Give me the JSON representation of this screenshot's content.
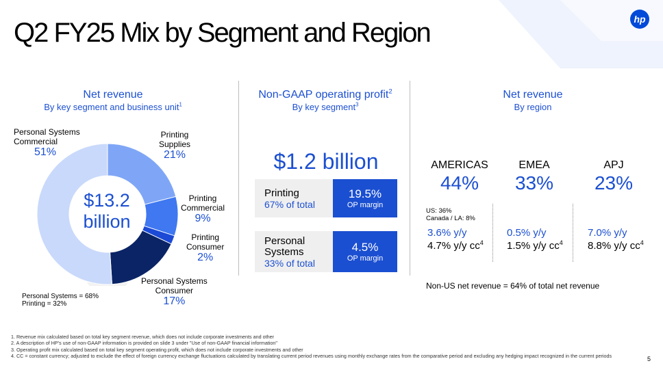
{
  "title": "Q2 FY25 Mix by Segment and Region",
  "logo_text": "hp",
  "page_number": "5",
  "colors": {
    "accent": "#1b4fd1",
    "navy": "#0b2466",
    "light_blue": "#c9d9fb",
    "mid_blue": "#7fa6f6",
    "blue": "#3f78f0",
    "deep_blue": "#1c4ad6"
  },
  "left": {
    "heading": "Net revenue",
    "subheading": "By key segment and business unit",
    "subheading_sup": "1",
    "center_value": "$13.2",
    "center_value_2": "billion",
    "segments": [
      {
        "name_1": "Personal Systems",
        "name_2": "Commercial",
        "pct": "51%",
        "value": 51
      },
      {
        "name_1": "Printing",
        "name_2": "Supplies",
        "pct": "21%",
        "value": 21
      },
      {
        "name_1": "Printing",
        "name_2": "Commercial",
        "pct": "9%",
        "value": 9
      },
      {
        "name_1": "Printing",
        "name_2": "Consumer",
        "pct": "2%",
        "value": 2
      },
      {
        "name_1": "Personal Systems",
        "name_2": "Consumer",
        "pct": "17%",
        "value": 17
      }
    ],
    "note_1": "Personal Systems = 68%",
    "note_2": "Printing = 32%"
  },
  "middle": {
    "heading": "Non-GAAP operating profit",
    "heading_sup": "2",
    "subheading": "By key segment",
    "subheading_sup": "3",
    "total": "$1.2 billion",
    "rows": [
      {
        "name_1": "Printing",
        "name_2": "",
        "share": "67% of total",
        "margin": "19.5%",
        "margin_label": "OP margin"
      },
      {
        "name_1": "Personal",
        "name_2": "Systems",
        "share": "33% of total",
        "margin": "4.5%",
        "margin_label": "OP margin"
      }
    ]
  },
  "right": {
    "heading": "Net revenue",
    "subheading": "By region",
    "regions": [
      {
        "name": "AMERICAS",
        "pct": "44%",
        "yy": "3.6% y/y",
        "cc": "4.7% y/y cc",
        "cc_sup": "4"
      },
      {
        "name": "EMEA",
        "pct": "33%",
        "yy": "0.5% y/y",
        "cc": "1.5% y/y cc",
        "cc_sup": "4"
      },
      {
        "name": "APJ",
        "pct": "23%",
        "yy": "7.0% y/y",
        "cc": "8.8% y/y cc",
        "cc_sup": "4"
      }
    ],
    "americas_detail_1": "US: 36%",
    "americas_detail_2": "Canada / LA: 8%",
    "footer_note": "Non-US net revenue = 64% of total net revenue"
  },
  "footnotes": [
    "1.  Revenue mix calculated based on total key segment revenue, which does not include corporate investments and other",
    "2.  A description of HP's use of non-GAAP information is provided on slide 3 under \"Use of non-GAAP financial information\"",
    "3.  Operating profit mix calculated based on total key segment operating profit, which does not include corporate investments and other",
    "4.  CC = constant currency; adjusted to exclude the effect of foreign currency exchange fluctuations calculated by translating current period revenues using monthly exchange rates from the comparative period and excluding any hedging impact recognized in the current periods"
  ]
}
